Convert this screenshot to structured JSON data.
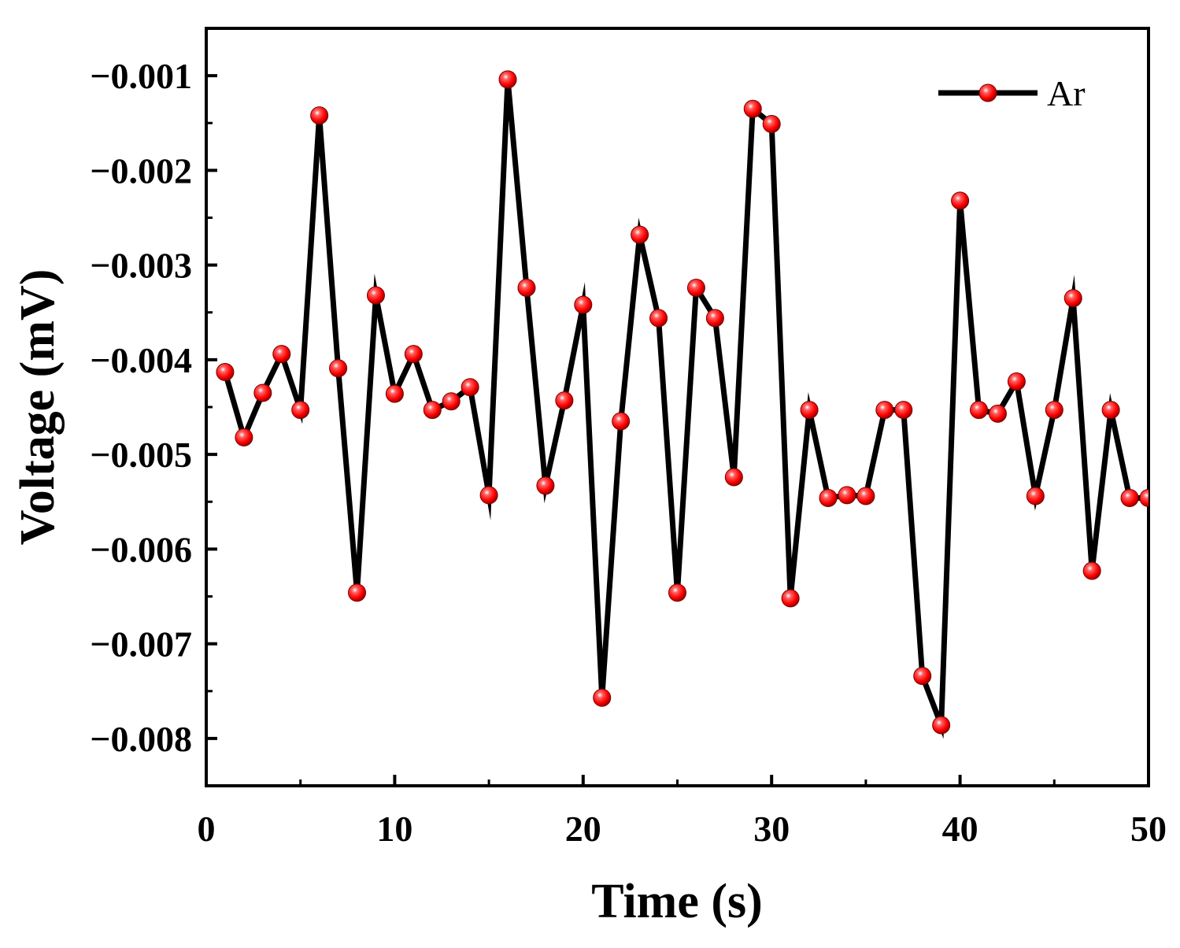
{
  "chart_data": {
    "type": "line",
    "title": "",
    "xlabel": "Time (s)",
    "ylabel": "Voltage (mV)",
    "xlim": [
      0,
      50
    ],
    "ylim": [
      -0.0085,
      -0.0005
    ],
    "xticks": [
      0,
      10,
      20,
      30,
      40,
      50
    ],
    "xtick_labels": [
      "0",
      "10",
      "20",
      "30",
      "40",
      "50"
    ],
    "yticks": [
      -0.001,
      -0.002,
      -0.003,
      -0.004,
      -0.005,
      -0.006,
      -0.007,
      -0.008
    ],
    "ytick_labels": [
      "−0.001",
      "−0.002",
      "−0.003",
      "−0.004",
      "−0.005",
      "−0.006",
      "−0.007",
      "−0.008"
    ],
    "grid": false,
    "legend_position": "top-right",
    "series": [
      {
        "name": "Ar",
        "line_color": "#000000",
        "marker_color": "#ff0000",
        "x": [
          1,
          2,
          3,
          4,
          5,
          6,
          7,
          8,
          9,
          10,
          11,
          12,
          13,
          14,
          15,
          16,
          17,
          18,
          19,
          20,
          21,
          22,
          23,
          24,
          25,
          26,
          27,
          28,
          29,
          30,
          31,
          32,
          33,
          34,
          35,
          36,
          37,
          38,
          39,
          40,
          41,
          42,
          43,
          44,
          45,
          46,
          47,
          48,
          49,
          50
        ],
        "values": [
          -0.00413,
          -0.00482,
          -0.00435,
          -0.00394,
          -0.00453,
          -0.00142,
          -0.00409,
          -0.00646,
          -0.00332,
          -0.00436,
          -0.00394,
          -0.00453,
          -0.00444,
          -0.00429,
          -0.00543,
          -0.00104,
          -0.00324,
          -0.00533,
          -0.00443,
          -0.00342,
          -0.00757,
          -0.00465,
          -0.00268,
          -0.00356,
          -0.00646,
          -0.00324,
          -0.00356,
          -0.00524,
          -0.00135,
          -0.00151,
          -0.00652,
          -0.00453,
          -0.00546,
          -0.00543,
          -0.00544,
          -0.00453,
          -0.00453,
          -0.00734,
          -0.00786,
          -0.00232,
          -0.00453,
          -0.00457,
          -0.00423,
          -0.00544,
          -0.00453,
          -0.00335,
          -0.00623,
          -0.00453,
          -0.00546,
          -0.00546
        ]
      }
    ]
  }
}
